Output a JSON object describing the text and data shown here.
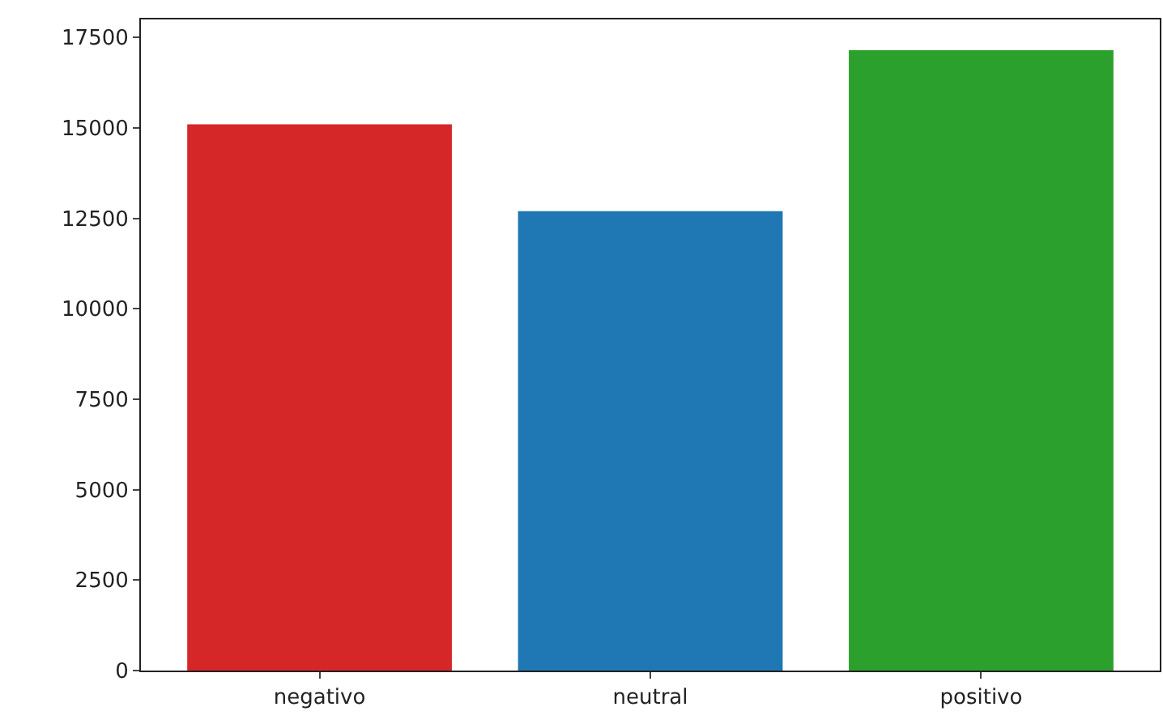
{
  "chart_data": {
    "type": "bar",
    "categories": [
      "negativo",
      "neutral",
      "positivo"
    ],
    "values": [
      15100,
      12700,
      17150
    ],
    "colors": [
      "#d62728",
      "#1f77b4",
      "#2ca02c"
    ],
    "ylim": [
      0,
      18000
    ],
    "yticks": [
      0,
      2500,
      5000,
      7500,
      10000,
      12500,
      15000,
      17500
    ]
  }
}
